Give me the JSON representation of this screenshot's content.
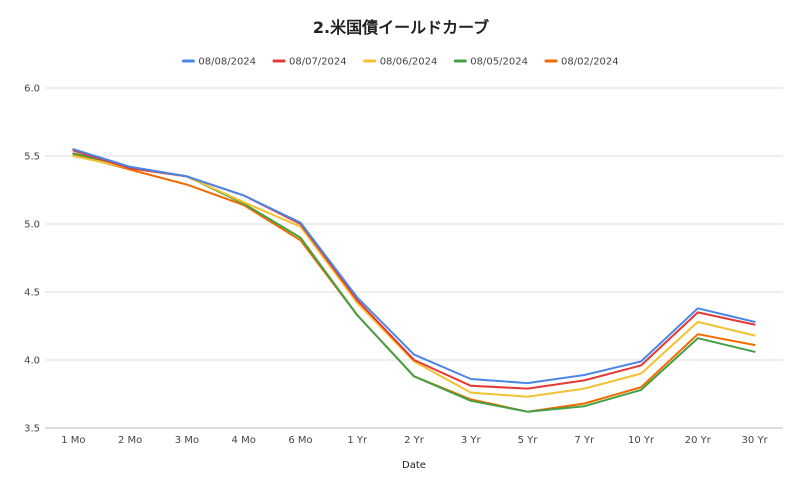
{
  "chart_data": {
    "type": "line",
    "title": "2.米国債イールドカーブ",
    "xlabel": "Date",
    "ylabel": "",
    "categories": [
      "1 Mo",
      "2 Mo",
      "3 Mo",
      "4 Mo",
      "6 Mo",
      "1 Yr",
      "2 Yr",
      "3 Yr",
      "5 Yr",
      "7 Yr",
      "10 Yr",
      "20 Yr",
      "30 Yr"
    ],
    "ylim": [
      3.5,
      6.0
    ],
    "yticks": [
      "6.0",
      "5.5",
      "5.0",
      "4.5",
      "4.0",
      "3.5"
    ],
    "grid": true,
    "legend_position": "top",
    "series": [
      {
        "name": "08/08/2024",
        "color": "#4a86e8",
        "values": [
          5.55,
          5.42,
          5.35,
          5.21,
          5.01,
          4.46,
          4.04,
          3.86,
          3.83,
          3.89,
          3.99,
          4.38,
          4.28
        ]
      },
      {
        "name": "08/07/2024",
        "color": "#e53935",
        "values": [
          5.54,
          5.41,
          5.35,
          5.21,
          5.0,
          4.44,
          4.0,
          3.81,
          3.79,
          3.85,
          3.96,
          4.35,
          4.26
        ]
      },
      {
        "name": "08/06/2024",
        "color": "#f1c232",
        "values": [
          5.5,
          5.41,
          5.35,
          5.16,
          4.98,
          4.42,
          3.99,
          3.76,
          3.73,
          3.79,
          3.9,
          4.28,
          4.18
        ]
      },
      {
        "name": "08/05/2024",
        "color": "#43a047",
        "values": [
          5.52,
          5.42,
          5.35,
          5.15,
          4.9,
          4.33,
          3.88,
          3.7,
          3.62,
          3.66,
          3.78,
          4.16,
          4.06
        ]
      },
      {
        "name": "08/02/2024",
        "color": "#ef6c00",
        "values": [
          5.51,
          5.4,
          5.29,
          5.14,
          4.88,
          4.33,
          3.88,
          3.71,
          3.62,
          3.68,
          3.8,
          4.19,
          4.11
        ]
      }
    ]
  }
}
